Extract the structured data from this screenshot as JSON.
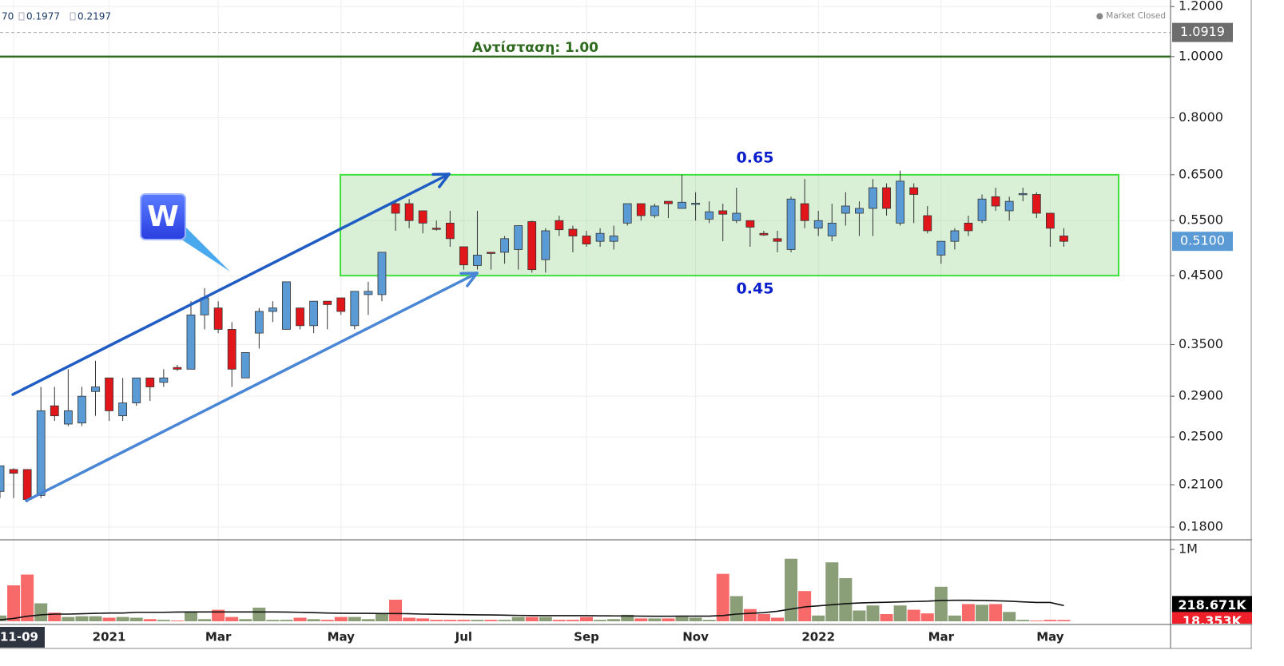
{
  "chart_data": {
    "type": "candlestick",
    "header_values": [
      "70",
      "0.1977",
      "0.2197"
    ],
    "status": "● Market Closed",
    "logo": "W",
    "categories": [
      null,
      "11-09",
      null,
      null,
      null,
      null,
      null,
      null,
      "2021",
      null,
      null,
      null,
      null,
      null,
      null,
      null,
      "Mar",
      null,
      null,
      null,
      null,
      null,
      null,
      null,
      null,
      "May",
      null,
      null,
      null,
      null,
      null,
      null,
      null,
      null,
      "Jul",
      null,
      null,
      null,
      null,
      null,
      null,
      null,
      null,
      "Sep",
      null,
      null,
      null,
      null,
      null,
      null,
      null,
      "Nov",
      null,
      null,
      null,
      null,
      null,
      null,
      null,
      null,
      "2022",
      null,
      null,
      null,
      null,
      null,
      null,
      null,
      null,
      "Mar",
      null,
      null,
      null,
      null,
      null,
      null,
      null,
      "May",
      null
    ],
    "open": [
      0.205,
      0.222,
      0.222,
      0.202,
      0.28,
      0.262,
      0.263,
      0.295,
      0.31,
      0.27,
      0.283,
      0.31,
      0.305,
      0.322,
      0.32,
      0.39,
      0.4,
      0.37,
      0.31,
      0.365,
      0.395,
      0.37,
      0.4,
      0.375,
      0.41,
      0.415,
      0.375,
      0.42,
      0.42,
      0.585,
      0.585,
      0.57,
      0.535,
      0.545,
      0.5,
      0.467,
      0.49,
      0.49,
      0.495,
      0.548,
      0.477,
      0.55,
      0.533,
      0.52,
      0.51,
      0.51,
      0.545,
      0.585,
      0.56,
      0.59,
      0.575,
      0.585,
      0.553,
      0.57,
      0.55,
      0.55,
      0.525,
      0.515,
      0.495,
      0.585,
      0.535,
      0.52,
      0.565,
      0.565,
      0.575,
      0.62,
      0.545,
      0.62,
      0.56,
      0.485,
      0.51,
      0.545,
      0.55,
      0.6,
      0.57,
      0.605,
      0.605,
      0.565,
      0.52
    ],
    "high": [
      0.225,
      0.223,
      0.222,
      0.3,
      0.3,
      0.32,
      0.3,
      0.33,
      0.31,
      0.31,
      0.31,
      0.31,
      0.32,
      0.325,
      0.41,
      0.43,
      0.41,
      0.38,
      0.34,
      0.4,
      0.41,
      0.44,
      0.4,
      0.41,
      0.41,
      0.415,
      0.425,
      0.44,
      0.49,
      0.59,
      0.595,
      0.57,
      0.55,
      0.57,
      0.5,
      0.57,
      0.49,
      0.52,
      0.54,
      0.55,
      0.535,
      0.56,
      0.54,
      0.53,
      0.535,
      0.54,
      0.585,
      0.585,
      0.585,
      0.59,
      0.65,
      0.61,
      0.59,
      0.585,
      0.62,
      0.55,
      0.53,
      0.53,
      0.6,
      0.64,
      0.57,
      0.585,
      0.61,
      0.59,
      0.64,
      0.63,
      0.66,
      0.63,
      0.58,
      0.51,
      0.535,
      0.56,
      0.605,
      0.62,
      0.6,
      0.62,
      0.61,
      0.565,
      0.535
    ],
    "low": [
      0.2,
      0.2,
      0.197,
      0.2,
      0.265,
      0.26,
      0.26,
      0.27,
      0.265,
      0.265,
      0.28,
      0.285,
      0.3,
      0.318,
      0.32,
      0.37,
      0.365,
      0.3,
      0.31,
      0.345,
      0.38,
      0.37,
      0.37,
      0.365,
      0.37,
      0.39,
      0.37,
      0.39,
      0.41,
      0.53,
      0.535,
      0.525,
      0.53,
      0.5,
      0.46,
      0.46,
      0.46,
      0.47,
      0.46,
      0.455,
      0.455,
      0.52,
      0.49,
      0.5,
      0.5,
      0.495,
      0.54,
      0.55,
      0.555,
      0.555,
      0.575,
      0.55,
      0.545,
      0.51,
      0.545,
      0.5,
      0.52,
      0.49,
      0.49,
      0.535,
      0.52,
      0.51,
      0.54,
      0.52,
      0.52,
      0.56,
      0.54,
      0.545,
      0.525,
      0.47,
      0.495,
      0.52,
      0.545,
      0.57,
      0.55,
      0.59,
      0.555,
      0.5,
      0.5
    ],
    "close": [
      0.225,
      0.219,
      0.199,
      0.275,
      0.27,
      0.275,
      0.29,
      0.3,
      0.275,
      0.283,
      0.31,
      0.3,
      0.31,
      0.32,
      0.39,
      0.415,
      0.37,
      0.32,
      0.34,
      0.395,
      0.4,
      0.44,
      0.375,
      0.41,
      0.405,
      0.395,
      0.425,
      0.425,
      0.49,
      0.565,
      0.55,
      0.545,
      0.533,
      0.515,
      0.468,
      0.485,
      0.488,
      0.515,
      0.54,
      0.46,
      0.53,
      0.532,
      0.52,
      0.505,
      0.525,
      0.52,
      0.585,
      0.56,
      0.58,
      0.585,
      0.588,
      0.586,
      0.568,
      0.563,
      0.565,
      0.537,
      0.522,
      0.51,
      0.595,
      0.55,
      0.55,
      0.545,
      0.58,
      0.575,
      0.62,
      0.575,
      0.635,
      0.605,
      0.53,
      0.51,
      0.53,
      0.53,
      0.595,
      0.58,
      0.59,
      0.607,
      0.565,
      0.535,
      0.51
    ],
    "close_value_labels": [
      null,
      null,
      null,
      null,
      null,
      null,
      null,
      null,
      null,
      null,
      null,
      null,
      null,
      null,
      null,
      null,
      null,
      null,
      null,
      null,
      null,
      null,
      null,
      null,
      null,
      null,
      null,
      null,
      null,
      null,
      null,
      null,
      null,
      null,
      null,
      null,
      null,
      null,
      null,
      null,
      null,
      null,
      null,
      null,
      null,
      null,
      null,
      null,
      null,
      null,
      null,
      null,
      null,
      null,
      null,
      null,
      null,
      null,
      null,
      null,
      null,
      null,
      null,
      null,
      null,
      null,
      null,
      null,
      null,
      null,
      null,
      null,
      null,
      null,
      null,
      null,
      null,
      null,
      "0.5100"
    ],
    "up_color": "#5b9bd5",
    "down_color": "#e0161b",
    "log_scale": true,
    "grid": true,
    "ylim": [
      0.18,
      1.229
    ],
    "yticks": [
      {
        "value": 1.2,
        "label": "1.2000"
      },
      {
        "value": 1.0,
        "label": "1.0000"
      },
      {
        "value": 0.8,
        "label": "0.8000"
      },
      {
        "value": 0.65,
        "label": "0.6500"
      },
      {
        "value": 0.55,
        "label": "0.5500"
      },
      {
        "value": 0.45,
        "label": "0.4500"
      },
      {
        "value": 0.35,
        "label": "0.3500"
      },
      {
        "value": 0.29,
        "label": "0.2900"
      },
      {
        "value": 0.25,
        "label": "0.2500"
      },
      {
        "value": 0.21,
        "label": "0.2100"
      },
      {
        "value": 0.18,
        "label": "0.1800"
      }
    ],
    "reference_line": 1.0919,
    "resistance": {
      "value": 1,
      "label": "Αντίσταση: 1.00",
      "color": "#2e6b1e"
    },
    "zone": [
      0.65,
      0.45
    ],
    "volume": {
      "values": [
        80000,
        500000,
        650000,
        250000,
        120000,
        60000,
        70000,
        70000,
        50000,
        60000,
        50000,
        30000,
        20000,
        10000,
        130000,
        30000,
        160000,
        60000,
        30000,
        190000,
        20000,
        20000,
        50000,
        30000,
        20000,
        60000,
        60000,
        30000,
        110000,
        300000,
        50000,
        40000,
        20000,
        20000,
        20000,
        20000,
        20000,
        20000,
        60000,
        60000,
        60000,
        20000,
        20000,
        60000,
        20000,
        30000,
        90000,
        40000,
        40000,
        40000,
        60000,
        50000,
        20000,
        660000,
        350000,
        170000,
        100000,
        50000,
        870000,
        420000,
        80000,
        820000,
        600000,
        150000,
        220000,
        100000,
        220000,
        160000,
        110000,
        480000,
        80000,
        240000,
        230000,
        240000,
        130000,
        20000,
        10000,
        20000,
        18353
      ],
      "value_labels": [
        null,
        null,
        null,
        null,
        null,
        null,
        null,
        null,
        null,
        null,
        null,
        null,
        null,
        null,
        null,
        null,
        null,
        null,
        null,
        null,
        null,
        null,
        null,
        null,
        null,
        null,
        null,
        null,
        null,
        null,
        null,
        null,
        null,
        null,
        null,
        null,
        null,
        null,
        null,
        null,
        null,
        null,
        null,
        null,
        null,
        null,
        null,
        null,
        null,
        null,
        null,
        null,
        null,
        null,
        null,
        null,
        null,
        null,
        null,
        null,
        null,
        null,
        null,
        null,
        null,
        null,
        null,
        null,
        null,
        null,
        null,
        null,
        null,
        null,
        null,
        null,
        null,
        null,
        "18.353K"
      ],
      "up_color": "#8a9e78",
      "down_color": "#f86a6a",
      "ylim": [
        0,
        1000000
      ],
      "yticks": [
        {
          "value": 1000000,
          "label": "1M"
        }
      ],
      "ma": {
        "color": "#111111",
        "values": [
          20000,
          40000,
          70000,
          90000,
          100000,
          100000,
          105000,
          110000,
          115000,
          115000,
          125000,
          125000,
          125000,
          128000,
          130000,
          130000,
          130000,
          130000,
          130000,
          130000,
          130000,
          128000,
          125000,
          120000,
          115000,
          112000,
          110000,
          110000,
          108000,
          108000,
          105000,
          100000,
          98000,
          95000,
          92000,
          90000,
          88000,
          85000,
          82000,
          80000,
          78000,
          78000,
          78000,
          78000,
          76000,
          75000,
          74000,
          72000,
          70000,
          70000,
          72000,
          72000,
          72000,
          80000,
          100000,
          110000,
          120000,
          140000,
          170000,
          200000,
          215000,
          230000,
          245000,
          255000,
          260000,
          265000,
          270000,
          275000,
          280000,
          290000,
          292000,
          292000,
          290000,
          285000,
          280000,
          270000,
          262000,
          262000,
          218671
        ],
        "value_labels": [
          null,
          null,
          null,
          null,
          null,
          null,
          null,
          null,
          null,
          null,
          null,
          null,
          null,
          null,
          null,
          null,
          null,
          null,
          null,
          null,
          null,
          null,
          null,
          null,
          null,
          null,
          null,
          null,
          null,
          null,
          null,
          null,
          null,
          null,
          null,
          null,
          null,
          null,
          null,
          null,
          null,
          null,
          null,
          null,
          null,
          null,
          null,
          null,
          null,
          null,
          null,
          null,
          null,
          null,
          null,
          null,
          null,
          null,
          null,
          null,
          null,
          null,
          null,
          null,
          null,
          null,
          null,
          null,
          null,
          null,
          null,
          null,
          null,
          null,
          null,
          null,
          null,
          null,
          "218.671K"
        ]
      }
    }
  }
}
